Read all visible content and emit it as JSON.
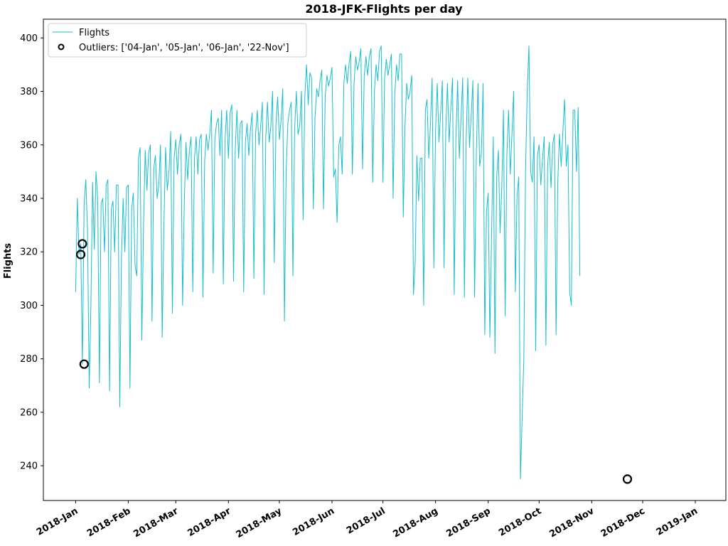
{
  "chart_data": {
    "type": "line",
    "title": "2018-JFK-Flights per day",
    "xlabel": "",
    "ylabel": "Flights",
    "xlim": [
      "2017-12-13",
      "2019-01-19"
    ],
    "ylim": [
      227,
      407
    ],
    "grid": false,
    "legend_position": "top-left",
    "y_ticks": [
      240,
      260,
      280,
      300,
      320,
      340,
      360,
      380,
      400
    ],
    "x_ticks": [
      {
        "date": "2018-01-01",
        "label": "2018-Jan"
      },
      {
        "date": "2018-02-01",
        "label": "2018-Feb"
      },
      {
        "date": "2018-03-01",
        "label": "2018-Mar"
      },
      {
        "date": "2018-04-01",
        "label": "2018-Apr"
      },
      {
        "date": "2018-05-01",
        "label": "2018-May"
      },
      {
        "date": "2018-06-01",
        "label": "2018-Jun"
      },
      {
        "date": "2018-07-01",
        "label": "2018-Jul"
      },
      {
        "date": "2018-08-01",
        "label": "2018-Aug"
      },
      {
        "date": "2018-09-01",
        "label": "2018-Sep"
      },
      {
        "date": "2018-10-01",
        "label": "2018-Oct"
      },
      {
        "date": "2018-11-01",
        "label": "2018-Nov"
      },
      {
        "date": "2018-12-01",
        "label": "2018-Dec"
      },
      {
        "date": "2019-01-01",
        "label": "2019-Jan"
      }
    ],
    "series": [
      {
        "name": "Flights",
        "color": "#17becf",
        "start_date": "2018-01-01",
        "values": [
          305,
          340,
          319,
          323,
          278,
          338,
          347,
          328,
          269,
          300,
          346,
          321,
          350,
          340,
          271,
          338,
          340,
          320,
          345,
          347,
          268,
          336,
          339,
          320,
          345,
          345,
          262,
          318,
          340,
          320,
          344,
          345,
          269,
          336,
          342,
          315,
          311,
          355,
          359,
          287,
          330,
          358,
          343,
          357,
          360,
          294,
          351,
          356,
          340,
          345,
          360,
          288,
          330,
          359,
          343,
          350,
          365,
          297,
          355,
          362,
          349,
          360,
          364,
          300,
          338,
          361,
          347,
          358,
          363,
          305,
          355,
          363,
          349,
          362,
          364,
          303,
          354,
          364,
          358,
          364,
          373,
          312,
          362,
          368,
          370,
          356,
          373,
          308,
          362,
          373,
          355,
          372,
          375,
          309,
          358,
          373,
          355,
          368,
          369,
          305,
          361,
          368,
          356,
          366,
          372,
          310,
          364,
          373,
          360,
          367,
          376,
          304,
          363,
          376,
          361,
          367,
          380,
          316,
          368,
          378,
          362,
          369,
          381,
          294,
          350,
          368,
          373,
          376,
          311,
          366,
          380,
          364,
          367,
          380,
          332,
          378,
          390,
          375,
          387,
          385,
          336,
          370,
          381,
          378,
          384,
          388,
          336,
          378,
          386,
          382,
          385,
          389,
          348,
          351,
          331,
          360,
          363,
          349,
          383,
          390,
          383,
          390,
          395,
          349,
          383,
          393,
          388,
          391,
          396,
          351,
          386,
          393,
          386,
          393,
          396,
          346,
          380,
          390,
          384,
          395,
          397,
          346,
          385,
          392,
          386,
          390,
          394,
          340,
          379,
          390,
          384,
          394,
          394,
          333,
          367,
          383,
          377,
          380,
          386,
          304,
          316,
          356,
          339,
          355,
          355,
          300,
          373,
          377,
          355,
          368,
          385,
          314,
          365,
          383,
          361,
          372,
          384,
          314,
          365,
          383,
          361,
          374,
          385,
          304,
          363,
          384,
          355,
          370,
          385,
          303,
          361,
          385,
          359,
          371,
          384,
          303,
          356,
          383,
          352,
          357,
          383,
          289,
          335,
          342,
          288,
          326,
          363,
          282,
          348,
          358,
          327,
          344,
          373,
          296,
          356,
          373,
          349,
          364,
          380,
          305,
          341,
          348,
          235,
          258,
          280,
          350,
          380,
          397,
          350,
          346,
          363,
          283,
          356,
          360,
          345,
          355,
          363,
          285,
          352,
          361,
          344,
          360,
          364,
          289,
          346,
          364,
          352,
          365,
          377,
          352,
          360,
          305,
          300,
          373,
          373,
          350,
          374,
          311
        ]
      }
    ],
    "outliers": {
      "label": "Outliers: ['04-Jan', '05-Jan', '06-Jan', '22-Nov']",
      "color": "#000000",
      "points": [
        {
          "date": "2018-01-04",
          "value": 319
        },
        {
          "date": "2018-01-05",
          "value": 323
        },
        {
          "date": "2018-01-06",
          "value": 278
        },
        {
          "date": "2018-11-22",
          "value": 235
        }
      ]
    }
  }
}
